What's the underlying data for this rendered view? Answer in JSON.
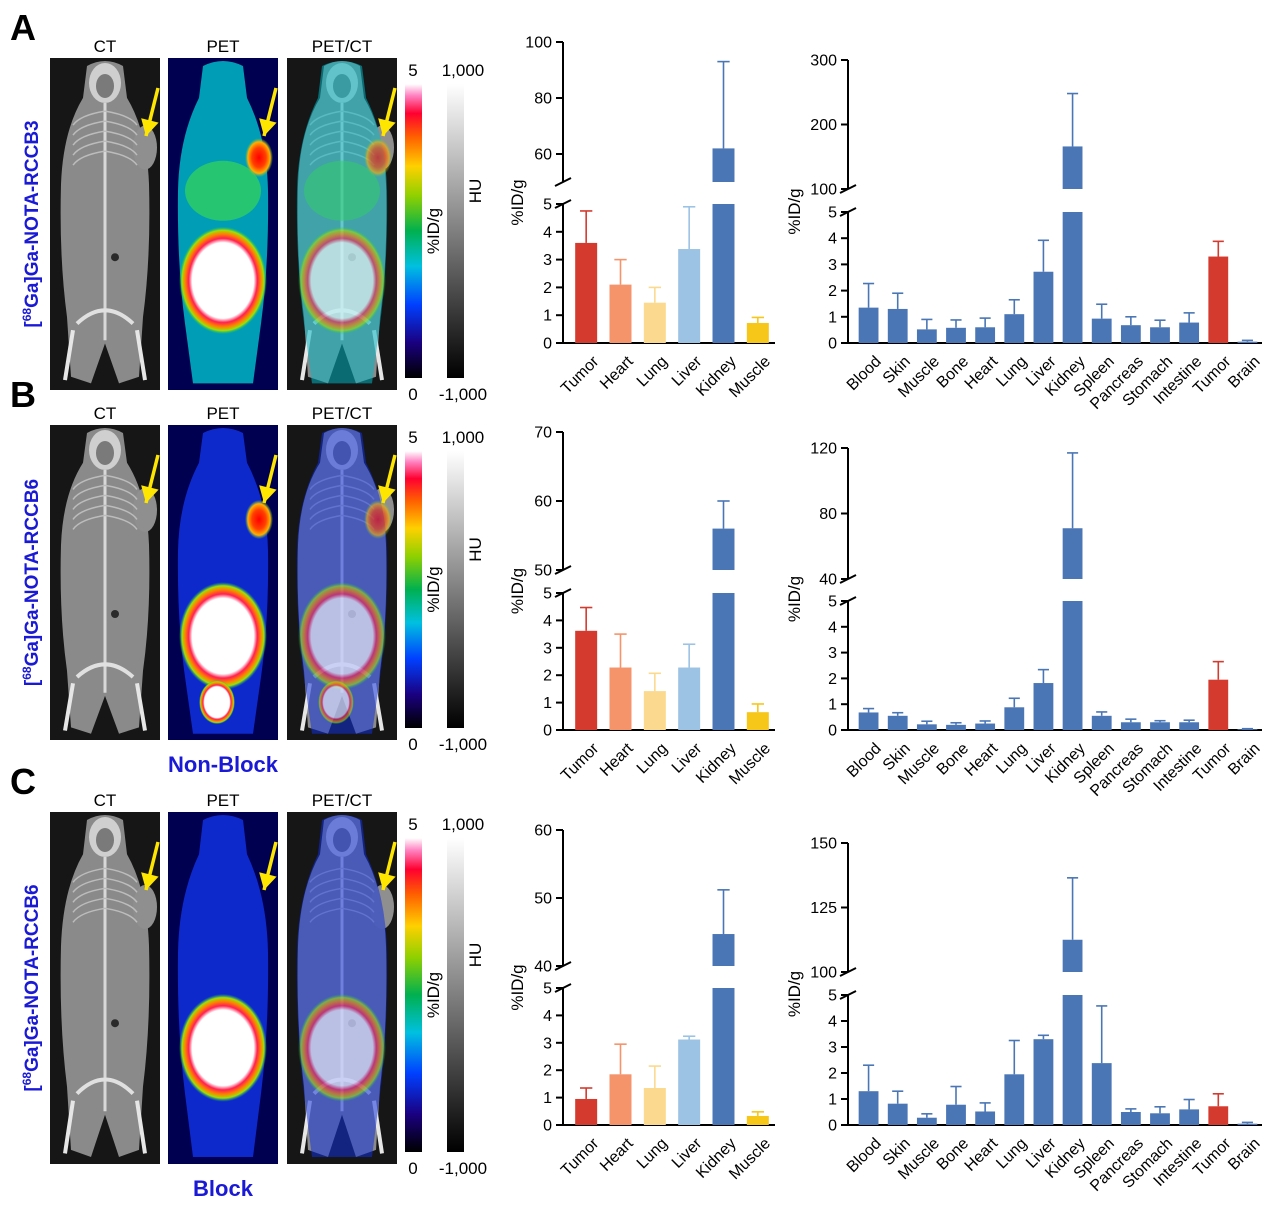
{
  "figure": {
    "panels": [
      {
        "letter": "A",
        "probe": "[68Ga]Ga-NOTA-RCCB3",
        "probe_parts": {
          "pre": "[",
          "sup": "68",
          "post": "Ga]Ga-NOTA-RCCB3"
        },
        "group_label": "",
        "image_titles": [
          "CT",
          "PET",
          "PET/CT"
        ],
        "pet_colorbar": {
          "max": "5",
          "min": "0",
          "label": "%ID/g"
        },
        "ct_colorbar": {
          "max": "1,000",
          "min": "-1,000",
          "label": "HU"
        }
      },
      {
        "letter": "B",
        "probe": "[68Ga]Ga-NOTA-RCCB6",
        "probe_parts": {
          "pre": "[",
          "sup": "68",
          "post": "Ga]Ga-NOTA-RCCB6"
        },
        "group_label": "Non-Block",
        "image_titles": [
          "CT",
          "PET",
          "PET/CT"
        ],
        "pet_colorbar": {
          "max": "5",
          "min": "0",
          "label": "%ID/g"
        },
        "ct_colorbar": {
          "max": "1,000",
          "min": "-1,000",
          "label": "HU"
        }
      },
      {
        "letter": "C",
        "probe": "[68Ga]Ga-NOTA-RCCB6",
        "probe_parts": {
          "pre": "[",
          "sup": "68",
          "post": "Ga]Ga-NOTA-RCCB6"
        },
        "group_label": "Block",
        "image_titles": [
          "CT",
          "PET",
          "PET/CT"
        ],
        "pet_colorbar": {
          "max": "5",
          "min": "0",
          "label": "%ID/g"
        },
        "ct_colorbar": {
          "max": "1,000",
          "min": "-1,000",
          "label": "HU"
        }
      }
    ]
  },
  "colors": {
    "tumor": "#d43a2e",
    "heart": "#f5936a",
    "lung": "#fbd98e",
    "liver": "#9cc3e4",
    "kidney": "#4a76b5",
    "muscle": "#f6c619",
    "generic": "#4a76b5",
    "arrow": "#ffe600"
  },
  "chart_data": [
    {
      "type": "bar",
      "panel": "A",
      "chart": "image-quantification",
      "categories": [
        "Tumor",
        "Heart",
        "Lung",
        "Liver",
        "Kidney",
        "Muscle"
      ],
      "values": [
        3.6,
        2.1,
        1.45,
        3.38,
        62,
        0.72
      ],
      "errors": [
        1.15,
        0.9,
        0.55,
        1.52,
        31,
        0.2
      ],
      "ylabel": "%ID/g",
      "broken_axis": {
        "lower": [
          0,
          5
        ],
        "upper": [
          50,
          100
        ],
        "lower_ticks": [
          0,
          1,
          2,
          3,
          4,
          5
        ],
        "upper_ticks": [
          60,
          80,
          100
        ]
      }
    },
    {
      "type": "bar",
      "panel": "A",
      "chart": "biodistribution",
      "categories": [
        "Blood",
        "Skin",
        "Muscle",
        "Bone",
        "Heart",
        "Lung",
        "Liver",
        "Kidney",
        "Spleen",
        "Pancreas",
        "Stomach",
        "Intestine",
        "Tumor",
        "Brain"
      ],
      "values": [
        1.35,
        1.3,
        0.52,
        0.58,
        0.6,
        1.1,
        2.72,
        166,
        0.93,
        0.68,
        0.6,
        0.78,
        3.3,
        0.05
      ],
      "errors": [
        0.92,
        0.6,
        0.38,
        0.3,
        0.35,
        0.55,
        1.2,
        82,
        0.55,
        0.32,
        0.27,
        0.37,
        0.58,
        0.05
      ],
      "ylabel": "%ID/g",
      "broken_axis": {
        "lower": [
          0,
          5
        ],
        "upper": [
          100,
          300
        ],
        "lower_ticks": [
          0,
          1,
          2,
          3,
          4,
          5
        ],
        "upper_ticks": [
          100,
          200,
          300
        ]
      }
    },
    {
      "type": "bar",
      "panel": "B",
      "chart": "image-quantification",
      "categories": [
        "Tumor",
        "Heart",
        "Lung",
        "Liver",
        "Kidney",
        "Muscle"
      ],
      "values": [
        3.62,
        2.28,
        1.42,
        2.28,
        56,
        0.65
      ],
      "errors": [
        0.85,
        1.22,
        0.65,
        0.85,
        4,
        0.3
      ],
      "ylabel": "%ID/g",
      "broken_axis": {
        "lower": [
          0,
          5
        ],
        "upper": [
          50,
          70
        ],
        "lower_ticks": [
          0,
          1,
          2,
          3,
          4,
          5
        ],
        "upper_ticks": [
          50,
          60,
          70
        ]
      }
    },
    {
      "type": "bar",
      "panel": "B",
      "chart": "biodistribution",
      "categories": [
        "Blood",
        "Skin",
        "Muscle",
        "Bone",
        "Heart",
        "Lung",
        "Liver",
        "Kidney",
        "Spleen",
        "Pancreas",
        "Stomach",
        "Intestine",
        "Tumor",
        "Brain"
      ],
      "values": [
        0.68,
        0.55,
        0.22,
        0.2,
        0.25,
        0.88,
        1.82,
        71,
        0.55,
        0.3,
        0.3,
        0.3,
        1.95,
        0.03
      ],
      "errors": [
        0.15,
        0.12,
        0.12,
        0.08,
        0.1,
        0.35,
        0.52,
        46,
        0.15,
        0.12,
        0.06,
        0.08,
        0.7,
        0.02
      ],
      "ylabel": "%ID/g",
      "broken_axis": {
        "lower": [
          0,
          5
        ],
        "upper": [
          40,
          120
        ],
        "lower_ticks": [
          0,
          1,
          2,
          3,
          4,
          5
        ],
        "upper_ticks": [
          40,
          80,
          120
        ]
      }
    },
    {
      "type": "bar",
      "panel": "C",
      "chart": "image-quantification",
      "categories": [
        "Tumor",
        "Heart",
        "Lung",
        "Liver",
        "Kidney",
        "Muscle"
      ],
      "values": [
        0.95,
        1.85,
        1.35,
        3.12,
        44.7,
        0.33
      ],
      "errors": [
        0.4,
        1.1,
        0.8,
        0.12,
        6.5,
        0.15
      ],
      "ylabel": "%ID/g",
      "broken_axis": {
        "lower": [
          0,
          5
        ],
        "upper": [
          40,
          60
        ],
        "lower_ticks": [
          0,
          1,
          2,
          3,
          4,
          5
        ],
        "upper_ticks": [
          40,
          50,
          60
        ]
      }
    },
    {
      "type": "bar",
      "panel": "C",
      "chart": "biodistribution",
      "categories": [
        "Blood",
        "Skin",
        "Muscle",
        "Bone",
        "Heart",
        "Lung",
        "Liver",
        "Kidney",
        "Spleen",
        "Pancreas",
        "Stomach",
        "Intestine",
        "Tumor",
        "Brain"
      ],
      "values": [
        1.3,
        0.82,
        0.28,
        0.78,
        0.52,
        1.95,
        3.3,
        112.5,
        2.38,
        0.5,
        0.45,
        0.6,
        0.72,
        0.05
      ],
      "errors": [
        1.0,
        0.48,
        0.15,
        0.7,
        0.33,
        1.3,
        0.15,
        24,
        2.2,
        0.12,
        0.25,
        0.38,
        0.48,
        0.05
      ],
      "ylabel": "%ID/g",
      "broken_axis": {
        "lower": [
          0,
          5
        ],
        "upper": [
          100,
          150
        ],
        "lower_ticks": [
          0,
          1,
          2,
          3,
          4,
          5
        ],
        "upper_ticks": [
          100,
          125,
          150
        ]
      }
    }
  ]
}
